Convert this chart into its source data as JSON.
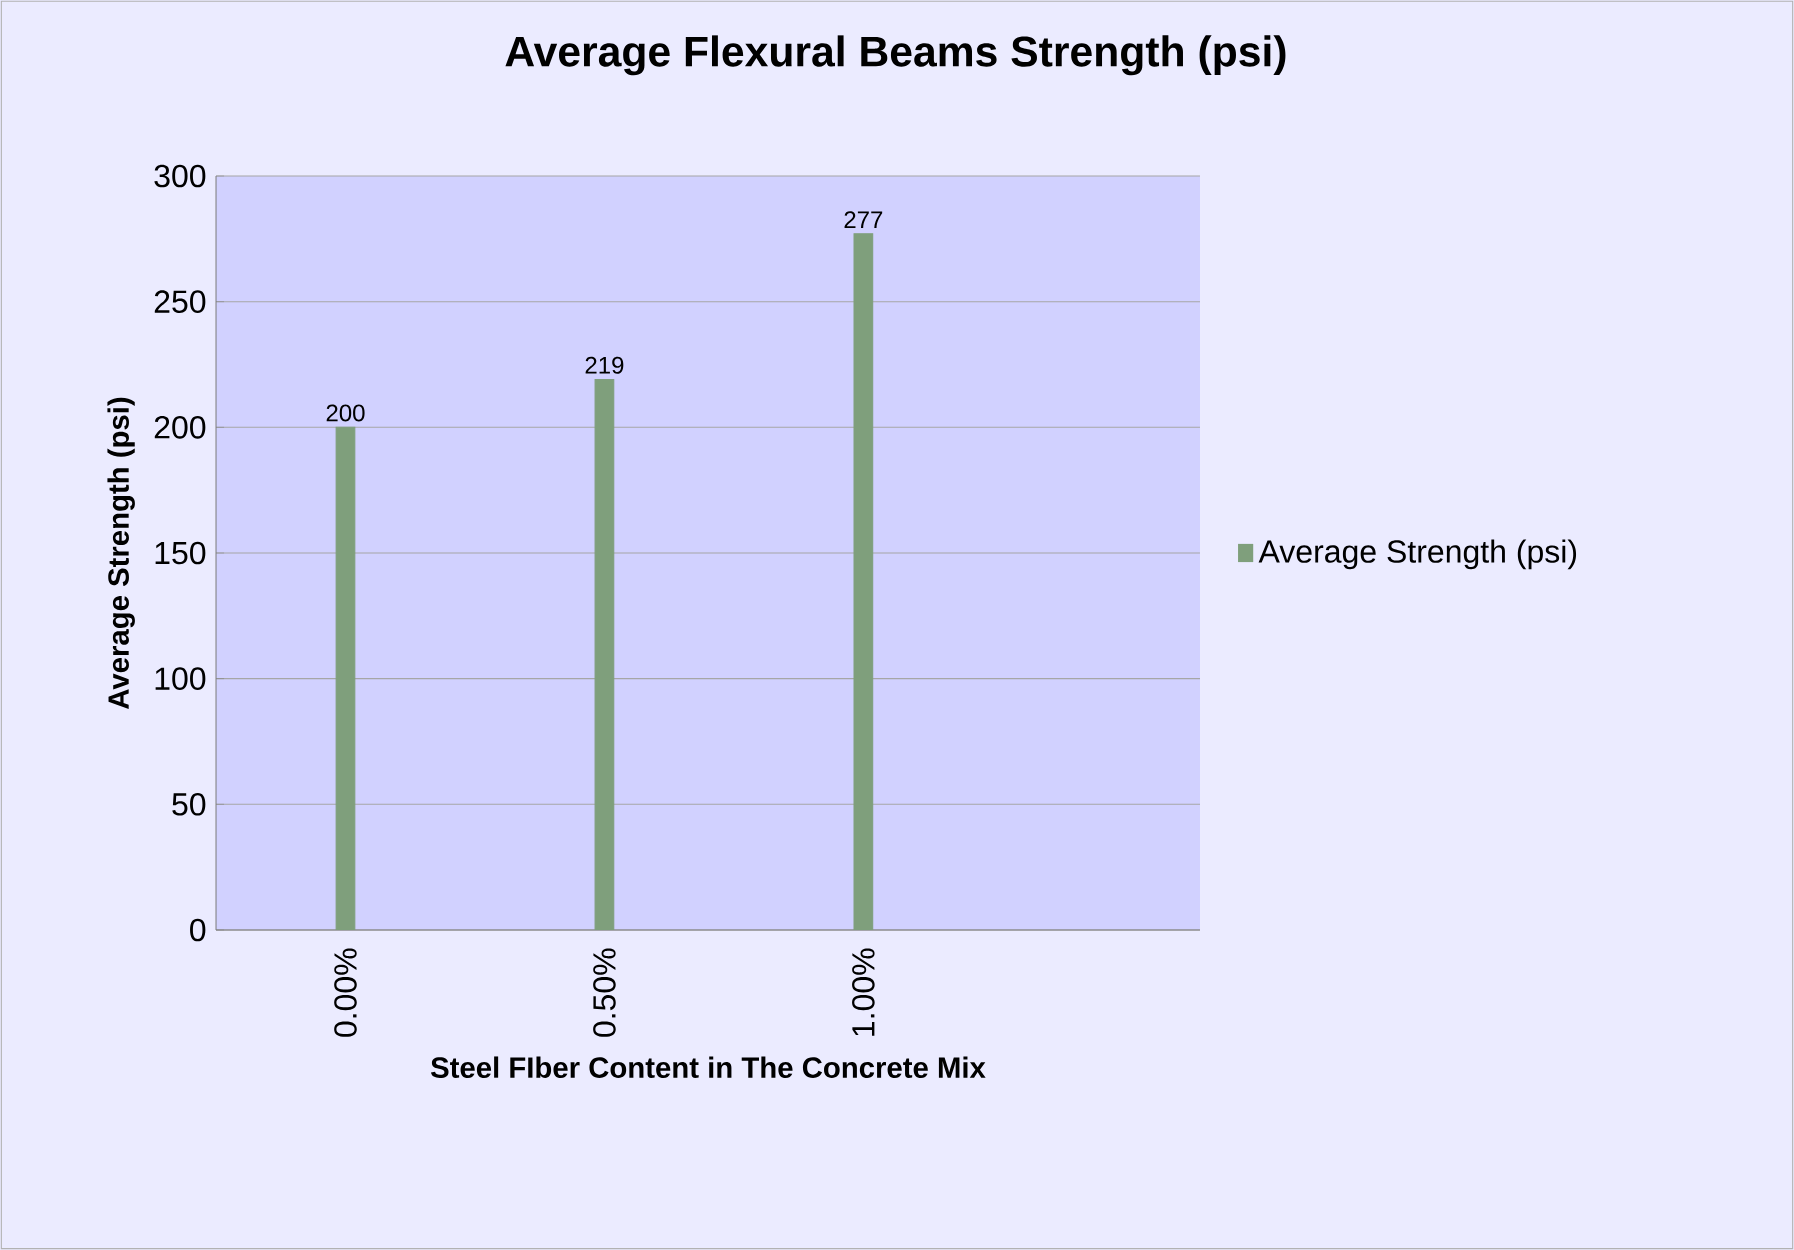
{
  "chart_data": {
    "type": "bar",
    "title": "Average Flexural Beams Strength (psi)",
    "xlabel": "Steel FIber Content in The Concrete Mix",
    "ylabel": "Average Strength (psi)",
    "categories": [
      "0.00%",
      "0.50%",
      "1.00%"
    ],
    "series": [
      {
        "name": "Average Strength (psi)",
        "color": "#7f9f7c",
        "values": [
          200,
          219,
          277
        ]
      }
    ],
    "ylim": [
      0,
      300
    ],
    "yticks": [
      0,
      50,
      100,
      150,
      200,
      250,
      300
    ],
    "grid": "y",
    "legend": "right",
    "data_labels": true
  }
}
